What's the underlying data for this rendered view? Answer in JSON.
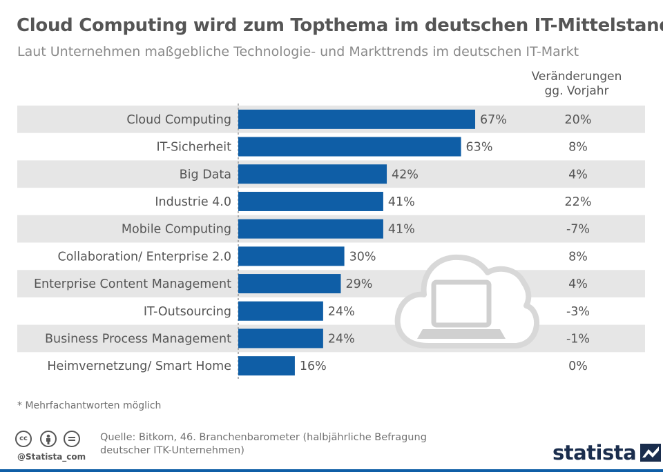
{
  "header": {
    "title": "Cloud Computing wird zum Topthema im deutschen IT-Mittelstand",
    "subtitle": "Laut Unternehmen maßgebliche Technologie- und Markttrends im deutschen IT-Markt"
  },
  "change_header": {
    "line1": "Veränderungen",
    "line2": "gg. Vorjahr"
  },
  "chart_data": {
    "type": "bar",
    "orientation": "horizontal",
    "categories": [
      "Cloud Computing",
      "IT-Sicherheit",
      "Big Data",
      "Industrie 4.0",
      "Mobile Computing",
      "Collaboration/ Enterprise 2.0",
      "Enterprise Content Management",
      "IT-Outsourcing",
      "Business Process Management",
      "Heimvernetzung/ Smart Home"
    ],
    "series": [
      {
        "values": [
          67,
          63,
          42,
          41,
          41,
          30,
          29,
          24,
          24,
          16
        ]
      }
    ],
    "value_labels": [
      "67%",
      "63%",
      "42%",
      "41%",
      "41%",
      "30%",
      "29%",
      "24%",
      "24%",
      "16%"
    ],
    "changes": [
      "20%",
      "8%",
      "4%",
      "22%",
      "-7%",
      "8%",
      "4%",
      "-3%",
      "-1%",
      "0%"
    ],
    "xlim": [
      0,
      100
    ],
    "grid": false,
    "legend": "none",
    "bar_color": "#0f5ea6",
    "stripe_color": "#e6e6e6"
  },
  "footnote": "* Mehrfachantworten möglich",
  "footer": {
    "source": "Quelle: Bitkom, 46. Branchenbarometer (halbjährliche Befragung deutscher ITK-Unternehmen)",
    "handle": "@Statista_com",
    "logo": "statista",
    "cc_icons": [
      "cc-icon",
      "by-icon",
      "nd-icon"
    ]
  }
}
